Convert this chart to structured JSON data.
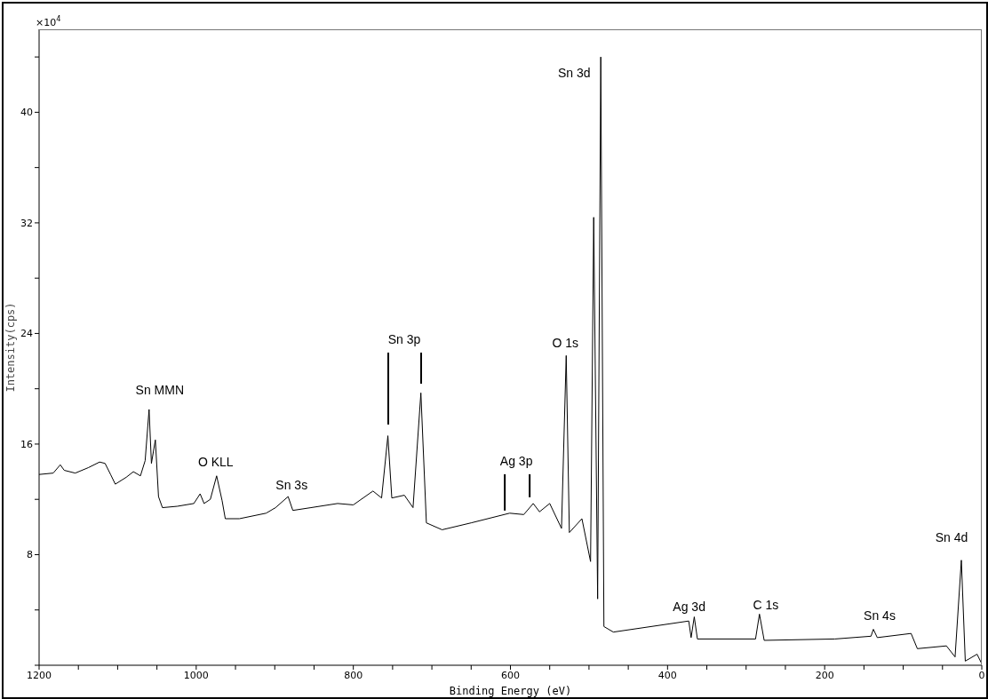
{
  "chart_data": {
    "type": "line",
    "xlabel": "Binding Energy (eV)",
    "ylabel": "Intensity(cps)",
    "x": [
      1200,
      1182,
      1173,
      1168,
      1154,
      1137,
      1123,
      1116,
      1109,
      1103,
      1089,
      1080,
      1071,
      1065,
      1060,
      1057,
      1052,
      1048,
      1043,
      1024,
      1003,
      995,
      990,
      982,
      974,
      967,
      963,
      945,
      911,
      899,
      883,
      877,
      854,
      820,
      800,
      775,
      764,
      756,
      751,
      735,
      724,
      714,
      707,
      687,
      650,
      601,
      583,
      571,
      563,
      550,
      535,
      529,
      525,
      509,
      498,
      494,
      489,
      485,
      481,
      469,
      373,
      370,
      366,
      362,
      288,
      283,
      277,
      187,
      141,
      138,
      133,
      90,
      82,
      45,
      34,
      26,
      21,
      6,
      0
    ],
    "series": [
      {
        "color": "#000000",
        "values": [
          13.8,
          13.9,
          14.5,
          14.1,
          13.9,
          14.3,
          14.7,
          14.6,
          13.8,
          13.1,
          13.6,
          14.0,
          13.7,
          14.8,
          18.5,
          14.6,
          16.3,
          12.2,
          11.4,
          11.5,
          11.7,
          12.4,
          11.7,
          12.0,
          13.7,
          11.9,
          10.6,
          10.6,
          11.0,
          11.4,
          12.2,
          11.2,
          11.4,
          11.7,
          11.6,
          12.6,
          12.1,
          16.6,
          12.1,
          12.3,
          11.4,
          19.7,
          10.3,
          9.8,
          10.3,
          11.0,
          10.9,
          11.7,
          11.1,
          11.7,
          9.9,
          22.4,
          9.6,
          10.6,
          7.5,
          32.4,
          4.8,
          44.0,
          2.8,
          2.4,
          3.2,
          2.0,
          3.5,
          1.9,
          1.9,
          3.7,
          1.8,
          1.9,
          2.1,
          2.6,
          2.0,
          2.3,
          1.2,
          1.4,
          0.6,
          7.6,
          0.3,
          0.8,
          0.1
        ]
      }
    ],
    "xlim": [
      1200,
      0
    ],
    "xticks": [
      1200,
      {
        "value": 1150,
        "label": null
      },
      {
        "value": 1100,
        "label": null
      },
      {
        "value": 1050,
        "label": null
      },
      1000,
      {
        "value": 950,
        "label": null
      },
      {
        "value": 900,
        "label": null
      },
      {
        "value": 850,
        "label": null
      },
      800,
      {
        "value": 750,
        "label": null
      },
      {
        "value": 700,
        "label": null
      },
      {
        "value": 650,
        "label": null
      },
      600,
      {
        "value": 550,
        "label": null
      },
      {
        "value": 500,
        "label": null
      },
      {
        "value": 450,
        "label": null
      },
      400,
      {
        "value": 350,
        "label": null
      },
      {
        "value": 300,
        "label": null
      },
      {
        "value": 250,
        "label": null
      },
      200,
      {
        "value": 150,
        "label": null
      },
      {
        "value": 100,
        "label": null
      },
      {
        "value": 50,
        "label": null
      },
      0
    ],
    "ylim": [
      0,
      46
    ],
    "yticks": [
      {
        "value": 0,
        "label": null
      },
      {
        "value": 4,
        "label": null
      },
      8,
      {
        "value": 12,
        "label": null
      },
      16,
      {
        "value": 20,
        "label": null
      },
      24,
      {
        "value": 28,
        "label": null
      },
      32,
      {
        "value": 36,
        "label": null
      },
      40,
      {
        "value": 44,
        "label": null
      }
    ],
    "marker": "none",
    "line_style": "solid",
    "annotations": [
      "×10$^{4}$",
      {
        "text": "Sn MMN",
        "x": 1060,
        "y": 18.5
      },
      {
        "text": "O KLL",
        "x": 974,
        "y": 13.7
      },
      {
        "text": "Sn 3s",
        "x": 883,
        "y": 12.2
      },
      "Sn 3p",
      {
        "text": "Ag 3p",
        "x": 571,
        "y": 11.7
      },
      {
        "text": "O 1s",
        "x": 529,
        "y": 22.4
      },
      {
        "text": "Sn 3d",
        "x": 485,
        "y": 44.0
      },
      {
        "text": "Ag 3d",
        "x": 368,
        "y": 3.5
      },
      {
        "text": "C 1s",
        "x": 283,
        "y": 3.7
      },
      {
        "text": "Sn 4s",
        "x": 138,
        "y": 2.6
      },
      {
        "text": "Sn 4d",
        "x": 26,
        "y": 7.6
      }
    ]
  }
}
